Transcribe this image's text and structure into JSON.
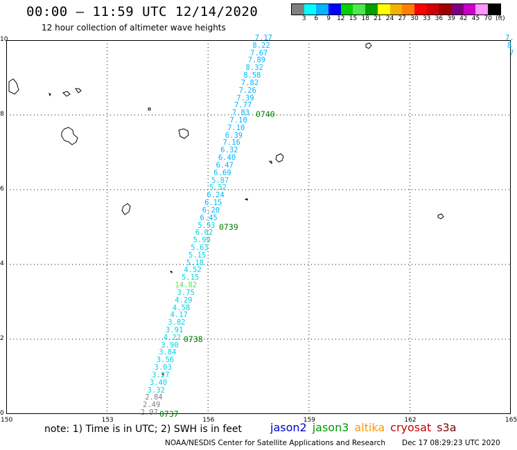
{
  "header": {
    "title": "00:00 – 11:59 UTC 12/14/2020",
    "subtitle": "12 hour collection of altimeter wave heights"
  },
  "scale": {
    "colors": [
      "#808080",
      "#00ffff",
      "#00b4ff",
      "#0000ff",
      "#00d200",
      "#50e650",
      "#00a000",
      "#ffff00",
      "#f0b400",
      "#ff8000",
      "#ff0000",
      "#d20000",
      "#a00000",
      "#800080",
      "#c800c8",
      "#ff96ff",
      "#000000"
    ],
    "labels": [
      "3",
      "6",
      "9",
      "12",
      "15",
      "18",
      "21",
      "24",
      "27",
      "30",
      "33",
      "36",
      "39",
      "42",
      "45",
      "70",
      "(ft)"
    ]
  },
  "axes": {
    "lon_labels": [
      "150",
      "153",
      "156",
      "159",
      "162",
      "165"
    ],
    "lat_labels": [
      "10",
      "8",
      "6",
      "4",
      "2",
      "0"
    ]
  },
  "track": {
    "values": [
      "7.17",
      "8.22",
      "7.67",
      "7.89",
      "8.32",
      "8.58",
      "7.82",
      "7.26",
      "7.39",
      "7.77",
      "7.83",
      "7.10",
      "7.10",
      "6.39",
      "7.16",
      "6.32",
      "6.40",
      "6.47",
      "6.69",
      "5.87",
      "5.52",
      "6.24",
      "6.15",
      "6.20",
      "6.45",
      "5.93",
      "6.02",
      "5.99",
      "5.63",
      "5.15",
      "5.18",
      "4.52",
      "5.15",
      "14.82",
      "3.75",
      "4.29",
      "4.58",
      "4.17",
      "3.82",
      "3.91",
      "4.22",
      "3.90",
      "3.84",
      "3.56",
      "3.03",
      "3.27",
      "3.40",
      "3.32",
      "2.84",
      "2.49",
      "2.97"
    ],
    "colors": [
      "#00b4ff",
      "#00b4ff",
      "#00b4ff",
      "#00b4ff",
      "#00b4ff",
      "#00b4ff",
      "#00b4ff",
      "#00b4ff",
      "#00b4ff",
      "#00b4ff",
      "#00b4ff",
      "#00b4ff",
      "#00b4ff",
      "#00b4ff",
      "#00b4ff",
      "#00b4ff",
      "#00b4ff",
      "#00b4ff",
      "#00b4ff",
      "#00d2e6",
      "#00d2e6",
      "#00b4ff",
      "#00b4ff",
      "#00b4ff",
      "#00b4ff",
      "#00d2e6",
      "#00d2e6",
      "#00d2e6",
      "#00d2e6",
      "#00d2e6",
      "#00d2e6",
      "#00d2e6",
      "#00d2e6",
      "#50e650",
      "#00d2e6",
      "#00d2e6",
      "#00d2e6",
      "#00d2e6",
      "#00d2e6",
      "#00d2e6",
      "#00d2e6",
      "#00d2e6",
      "#00d2e6",
      "#00d2e6",
      "#00d2e6",
      "#00d2e6",
      "#00d2e6",
      "#00d2e6",
      "#808080",
      "#808080",
      "#808080"
    ],
    "times": [
      "0740",
      "0739",
      "0738",
      "0737"
    ]
  },
  "right_edge": {
    "values": [
      "7.",
      "8",
      "7"
    ]
  },
  "footer": {
    "note": "note:  1) Time is in UTC;  2) SWH is in feet",
    "satellites": [
      {
        "name": "jason2",
        "color": "#0000c8"
      },
      {
        "name": "jason3",
        "color": "#009600"
      },
      {
        "name": "altika",
        "color": "#ff9600"
      },
      {
        "name": "cryosat",
        "color": "#c80000"
      },
      {
        "name": "s3a",
        "color": "#800000"
      }
    ],
    "credit": "NOAA/NESDIS Center for Satellite Applications and Research",
    "timestamp": "Dec 17 08:29:23 UTC 2020"
  }
}
